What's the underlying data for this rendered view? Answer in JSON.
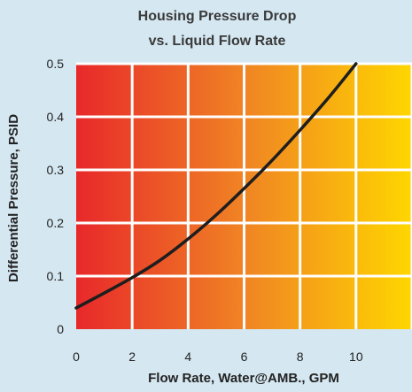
{
  "chart_data": {
    "type": "line",
    "title_lines": [
      "Housing Pressure Drop",
      "vs. Liquid Flow Rate"
    ],
    "xlabel": "Flow Rate, Water@AMB., GPM",
    "ylabel": "Differential Pressure, PSID",
    "xlim": [
      0,
      12
    ],
    "ylim": [
      0,
      0.5
    ],
    "x_ticks": [
      "0",
      "2",
      "4",
      "6",
      "8",
      "10"
    ],
    "y_ticks": [
      "0",
      "0.1",
      "0.2",
      "0.3",
      "0.4",
      "0.5"
    ],
    "grid": true,
    "series": [
      {
        "x": [
          0,
          1,
          2,
          3,
          4,
          5,
          6,
          7,
          8,
          9,
          10
        ],
        "y": [
          0.04,
          0.068,
          0.097,
          0.13,
          0.17,
          0.215,
          0.265,
          0.318,
          0.375,
          0.435,
          0.5
        ]
      }
    ],
    "colors": {
      "background": "#d5e7f1",
      "gradient_start": "#e8282a",
      "gradient_mid": "#f08424",
      "gradient_end": "#ffd600",
      "grid": "#ffffff",
      "line": "#1e1e1e"
    }
  }
}
